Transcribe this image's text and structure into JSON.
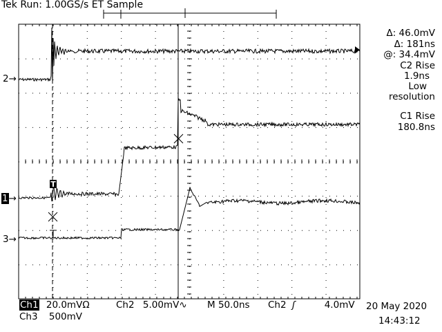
{
  "header": {
    "title": "Tek Run: 1.00GS/s ET Sample"
  },
  "readouts": {
    "delta_v": "Δ: 46.0mV",
    "delta_t": "Δ: 181ns",
    "at_v": "@: 34.4mV",
    "c2_rise_label": "C2 Rise",
    "c2_rise_value": "1.9ns",
    "c2_note_line1": "Low",
    "c2_note_line2": "resolution",
    "c1_rise_label": "C1 Rise",
    "c1_rise_value": "180.8ns"
  },
  "channel_markers": {
    "ch2": "2",
    "ch1": "1",
    "ch3": "3"
  },
  "trigger_marker": "T",
  "status": {
    "ch1_label": "Ch1",
    "ch1_scale": "20.0mVΩ",
    "ch2_label": "Ch2",
    "ch2_scale": "5.00mV∿",
    "timebase": "M 50.0ns",
    "trig_source": "Ch2",
    "trig_slope": "ʃ",
    "trig_level": "4.0mV",
    "ch3_label": "Ch3",
    "ch3_scale": "500mV",
    "date": "20 May 2020",
    "time": "14:43:12"
  }
}
